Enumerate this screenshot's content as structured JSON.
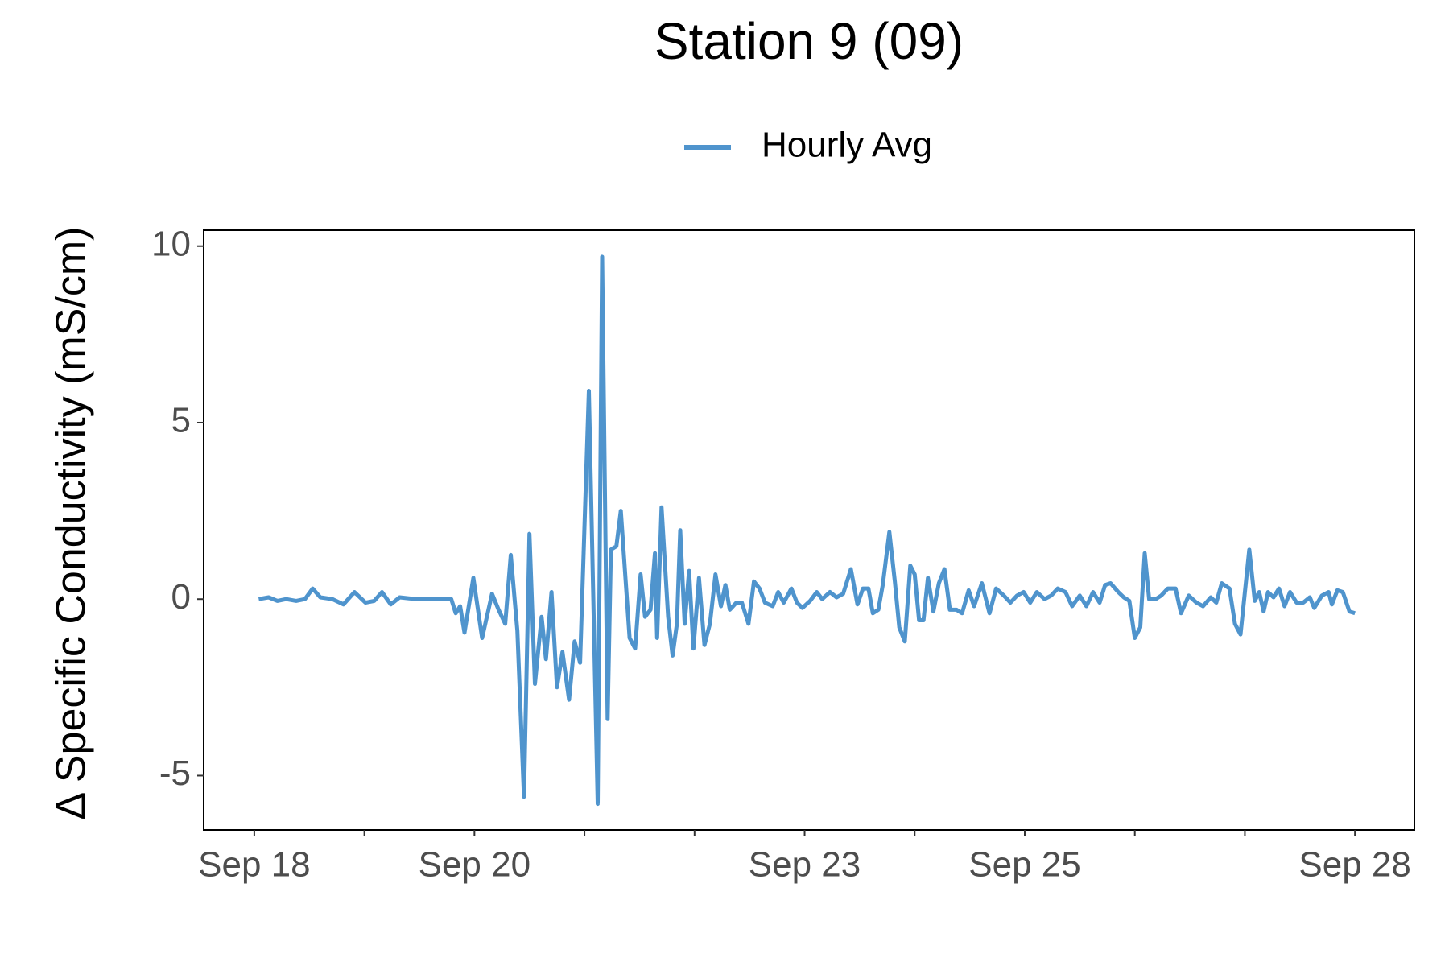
{
  "chart_data": {
    "type": "line",
    "title": "Station 9 (09)",
    "y_label": "Δ Specific Conductivity (mS/cm)",
    "legend": "top",
    "grid": false,
    "xlim": [
      17.54,
      28.54
    ],
    "ylim": [
      -6.54,
      10.45
    ],
    "xticks": [
      {
        "value": 18,
        "label": "Sep 18"
      },
      {
        "value": 19,
        "label": null
      },
      {
        "value": 20,
        "label": "Sep 20"
      },
      {
        "value": 21,
        "label": null
      },
      {
        "value": 22,
        "label": null
      },
      {
        "value": 23,
        "label": "Sep 23"
      },
      {
        "value": 24,
        "label": null
      },
      {
        "value": 25,
        "label": "Sep 25"
      },
      {
        "value": 26,
        "label": null
      },
      {
        "value": 27,
        "label": null
      },
      {
        "value": 28,
        "label": "Sep 28"
      }
    ],
    "yticks": [
      -5,
      0,
      5,
      10
    ],
    "x": [
      18.04,
      18.13,
      18.21,
      18.29,
      18.38,
      18.46,
      18.53,
      18.6,
      18.71,
      18.81,
      18.91,
      19.01,
      19.09,
      19.16,
      19.24,
      19.32,
      19.47,
      19.64,
      19.79,
      19.83,
      19.87,
      19.91,
      19.99,
      20.07,
      20.16,
      20.22,
      20.28,
      20.33,
      20.39,
      20.45,
      20.5,
      20.55,
      20.61,
      20.65,
      20.7,
      20.75,
      20.8,
      20.86,
      20.91,
      20.96,
      21.04,
      21.12,
      21.16,
      21.21,
      21.24,
      21.29,
      21.33,
      21.41,
      21.46,
      21.51,
      21.55,
      21.6,
      21.64,
      21.66,
      21.7,
      21.76,
      21.8,
      21.84,
      21.87,
      21.91,
      21.95,
      21.99,
      22.04,
      22.09,
      22.14,
      22.19,
      22.24,
      22.28,
      22.32,
      22.38,
      22.43,
      22.49,
      22.54,
      22.59,
      22.64,
      22.71,
      22.76,
      22.81,
      22.88,
      22.93,
      22.98,
      23.05,
      23.11,
      23.16,
      23.23,
      23.29,
      23.35,
      23.42,
      23.48,
      23.53,
      23.58,
      23.62,
      23.67,
      23.71,
      23.77,
      23.82,
      23.86,
      23.91,
      23.96,
      24,
      24.04,
      24.08,
      24.12,
      24.17,
      24.22,
      24.27,
      24.32,
      24.38,
      24.43,
      24.49,
      24.54,
      24.61,
      24.68,
      24.74,
      24.81,
      24.87,
      24.93,
      24.99,
      25.05,
      25.11,
      25.18,
      25.24,
      25.3,
      25.37,
      25.43,
      25.5,
      25.56,
      25.62,
      25.68,
      25.73,
      25.78,
      25.85,
      25.9,
      25.95,
      26,
      26.05,
      26.09,
      26.13,
      26.19,
      26.24,
      26.3,
      26.37,
      26.42,
      26.49,
      26.56,
      26.62,
      26.69,
      26.74,
      26.79,
      26.86,
      26.91,
      26.96,
      26.99,
      27.04,
      27.09,
      27.13,
      27.17,
      27.21,
      27.26,
      27.31,
      27.36,
      27.41,
      27.47,
      27.53,
      27.59,
      27.63,
      27.7,
      27.76,
      27.79,
      27.84,
      27.89,
      27.95,
      28
    ],
    "series": [
      {
        "name": "Hourly Avg",
        "color": "#4f94cd",
        "values": [
          0,
          0.05,
          -0.05,
          0,
          -0.05,
          0,
          0.3,
          0.05,
          0,
          -0.15,
          0.2,
          -0.1,
          -0.05,
          0.2,
          -0.15,
          0.05,
          0,
          0,
          0,
          -0.4,
          -0.2,
          -0.95,
          0.6,
          -1.1,
          0.15,
          -0.3,
          -0.7,
          1.25,
          -0.9,
          -5.6,
          1.85,
          -2.4,
          -0.5,
          -1.7,
          0.2,
          -2.5,
          -1.5,
          -2.85,
          -1.2,
          -1.8,
          5.9,
          -5.8,
          9.7,
          -3.4,
          1.4,
          1.5,
          2.5,
          -1.1,
          -1.4,
          0.7,
          -0.5,
          -0.3,
          1.3,
          -1.1,
          2.6,
          -0.5,
          -1.6,
          -0.7,
          1.95,
          -0.7,
          0.8,
          -1.4,
          0.6,
          -1.3,
          -0.7,
          0.7,
          -0.2,
          0.4,
          -0.3,
          -0.1,
          -0.1,
          -0.7,
          0.5,
          0.3,
          -0.1,
          -0.2,
          0.2,
          -0.1,
          0.3,
          -0.1,
          -0.25,
          -0.05,
          0.2,
          0,
          0.2,
          0.05,
          0.15,
          0.85,
          -0.15,
          0.3,
          0.3,
          -0.4,
          -0.3,
          0.4,
          1.9,
          0.5,
          -0.8,
          -1.2,
          0.95,
          0.7,
          -0.6,
          -0.6,
          0.6,
          -0.35,
          0.45,
          0.85,
          -0.3,
          -0.3,
          -0.4,
          0.25,
          -0.2,
          0.45,
          -0.4,
          0.3,
          0.1,
          -0.1,
          0.1,
          0.2,
          -0.1,
          0.2,
          0,
          0.1,
          0.3,
          0.2,
          -0.2,
          0.1,
          -0.2,
          0.2,
          -0.1,
          0.4,
          0.45,
          0.2,
          0.05,
          -0.05,
          -1.1,
          -0.8,
          1.3,
          0,
          0,
          0.1,
          0.3,
          0.3,
          -0.4,
          0.1,
          -0.1,
          -0.2,
          0.05,
          -0.1,
          0.45,
          0.3,
          -0.7,
          -1,
          -0.1,
          1.4,
          -0.05,
          0.2,
          -0.35,
          0.2,
          0.05,
          0.3,
          -0.2,
          0.2,
          -0.1,
          -0.1,
          0.05,
          -0.25,
          0.1,
          0.2,
          -0.15,
          0.25,
          0.2,
          -0.35,
          -0.4
        ]
      }
    ]
  }
}
